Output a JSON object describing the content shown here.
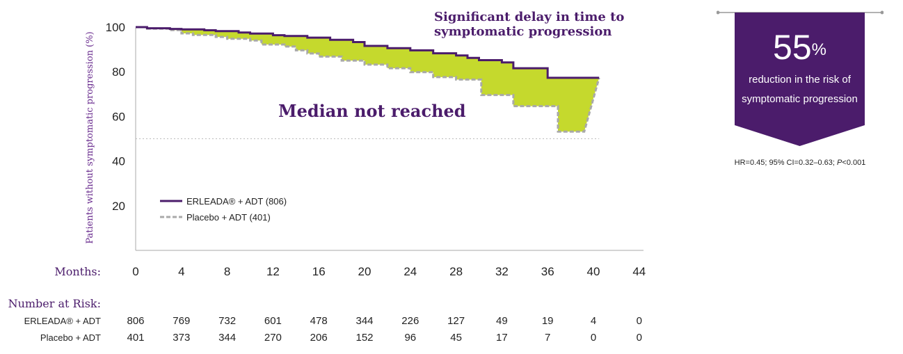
{
  "chart_data": {
    "type": "line",
    "subtype": "kaplan-meier",
    "ylabel": "Patients without symptomatic progression (%)",
    "xlabel": "Months:",
    "x_ticks": [
      0,
      4,
      8,
      12,
      16,
      20,
      24,
      28,
      32,
      36,
      40,
      44
    ],
    "y_ticks": [
      20,
      40,
      60,
      80,
      100
    ],
    "xlim": [
      0,
      44
    ],
    "ylim": [
      0,
      100
    ],
    "reference_line_y": 50,
    "series": [
      {
        "name": "ERLEADA® + ADT (806)",
        "style": "solid",
        "color": "#4b1c6b",
        "x": [
          0,
          1,
          3,
          4,
          6,
          7,
          9,
          10,
          12,
          13,
          15,
          17,
          19,
          20,
          22,
          24,
          26,
          28,
          29,
          30,
          32,
          33,
          35,
          36,
          40.5
        ],
        "y": [
          100,
          99.5,
          99.2,
          99,
          98.6,
          98.2,
          97.6,
          97.1,
          96.4,
          96,
          95.3,
          94.3,
          93.3,
          91.6,
          90.6,
          89.6,
          88.3,
          87.3,
          86.2,
          85.2,
          84.2,
          81.6,
          81.6,
          77.3,
          77.3
        ]
      },
      {
        "name": "Placebo + ADT (401)",
        "style": "dashed",
        "color": "#a9a9a9",
        "x": [
          0,
          1,
          3,
          4,
          5,
          7,
          8,
          10,
          11,
          13,
          14,
          15,
          16,
          18,
          20,
          22,
          24,
          26,
          28,
          29.7,
          30.2,
          32,
          33,
          36.9,
          39.2,
          40.5
        ],
        "y": [
          100,
          99.3,
          98.7,
          97.2,
          96.5,
          95.6,
          94.8,
          94,
          92.2,
          91.3,
          89.6,
          88.2,
          86.8,
          85,
          83.2,
          81.6,
          79.8,
          77.6,
          76.5,
          76.5,
          69.6,
          69.6,
          64.6,
          53.2,
          53.2,
          77.3
        ]
      }
    ],
    "fill_between": "#c5d92d",
    "title": "Significant delay in time to symptomatic progression",
    "annotation": "Median not reached",
    "risk_table": {
      "title": "Number at Risk:",
      "rows": [
        {
          "label": "ERLEADA® + ADT",
          "values": [
            "806",
            "769",
            "732",
            "601",
            "478",
            "344",
            "226",
            "127",
            "49",
            "19",
            "4",
            "0"
          ]
        },
        {
          "label": "Placebo + ADT",
          "values": [
            "401",
            "373",
            "344",
            "270",
            "206",
            "152",
            "96",
            "45",
            "17",
            "7",
            "0",
            "0"
          ]
        }
      ]
    }
  },
  "stat": {
    "percent": "55",
    "percent_sign": "%",
    "line1": "reduction in the risk of",
    "line2": "symptomatic progression",
    "note_main": "HR=0.45; 95% CI=0.32–0.63; ",
    "note_p_label": "P",
    "note_p_value": "<0.001"
  },
  "colors": {
    "purple": "#4b1c6b",
    "placebo_gray": "#a9a9a9",
    "fill": "#c5d92d",
    "title_purple": "#4b1c6b",
    "axis_label_purple": "#6a2d8f"
  }
}
